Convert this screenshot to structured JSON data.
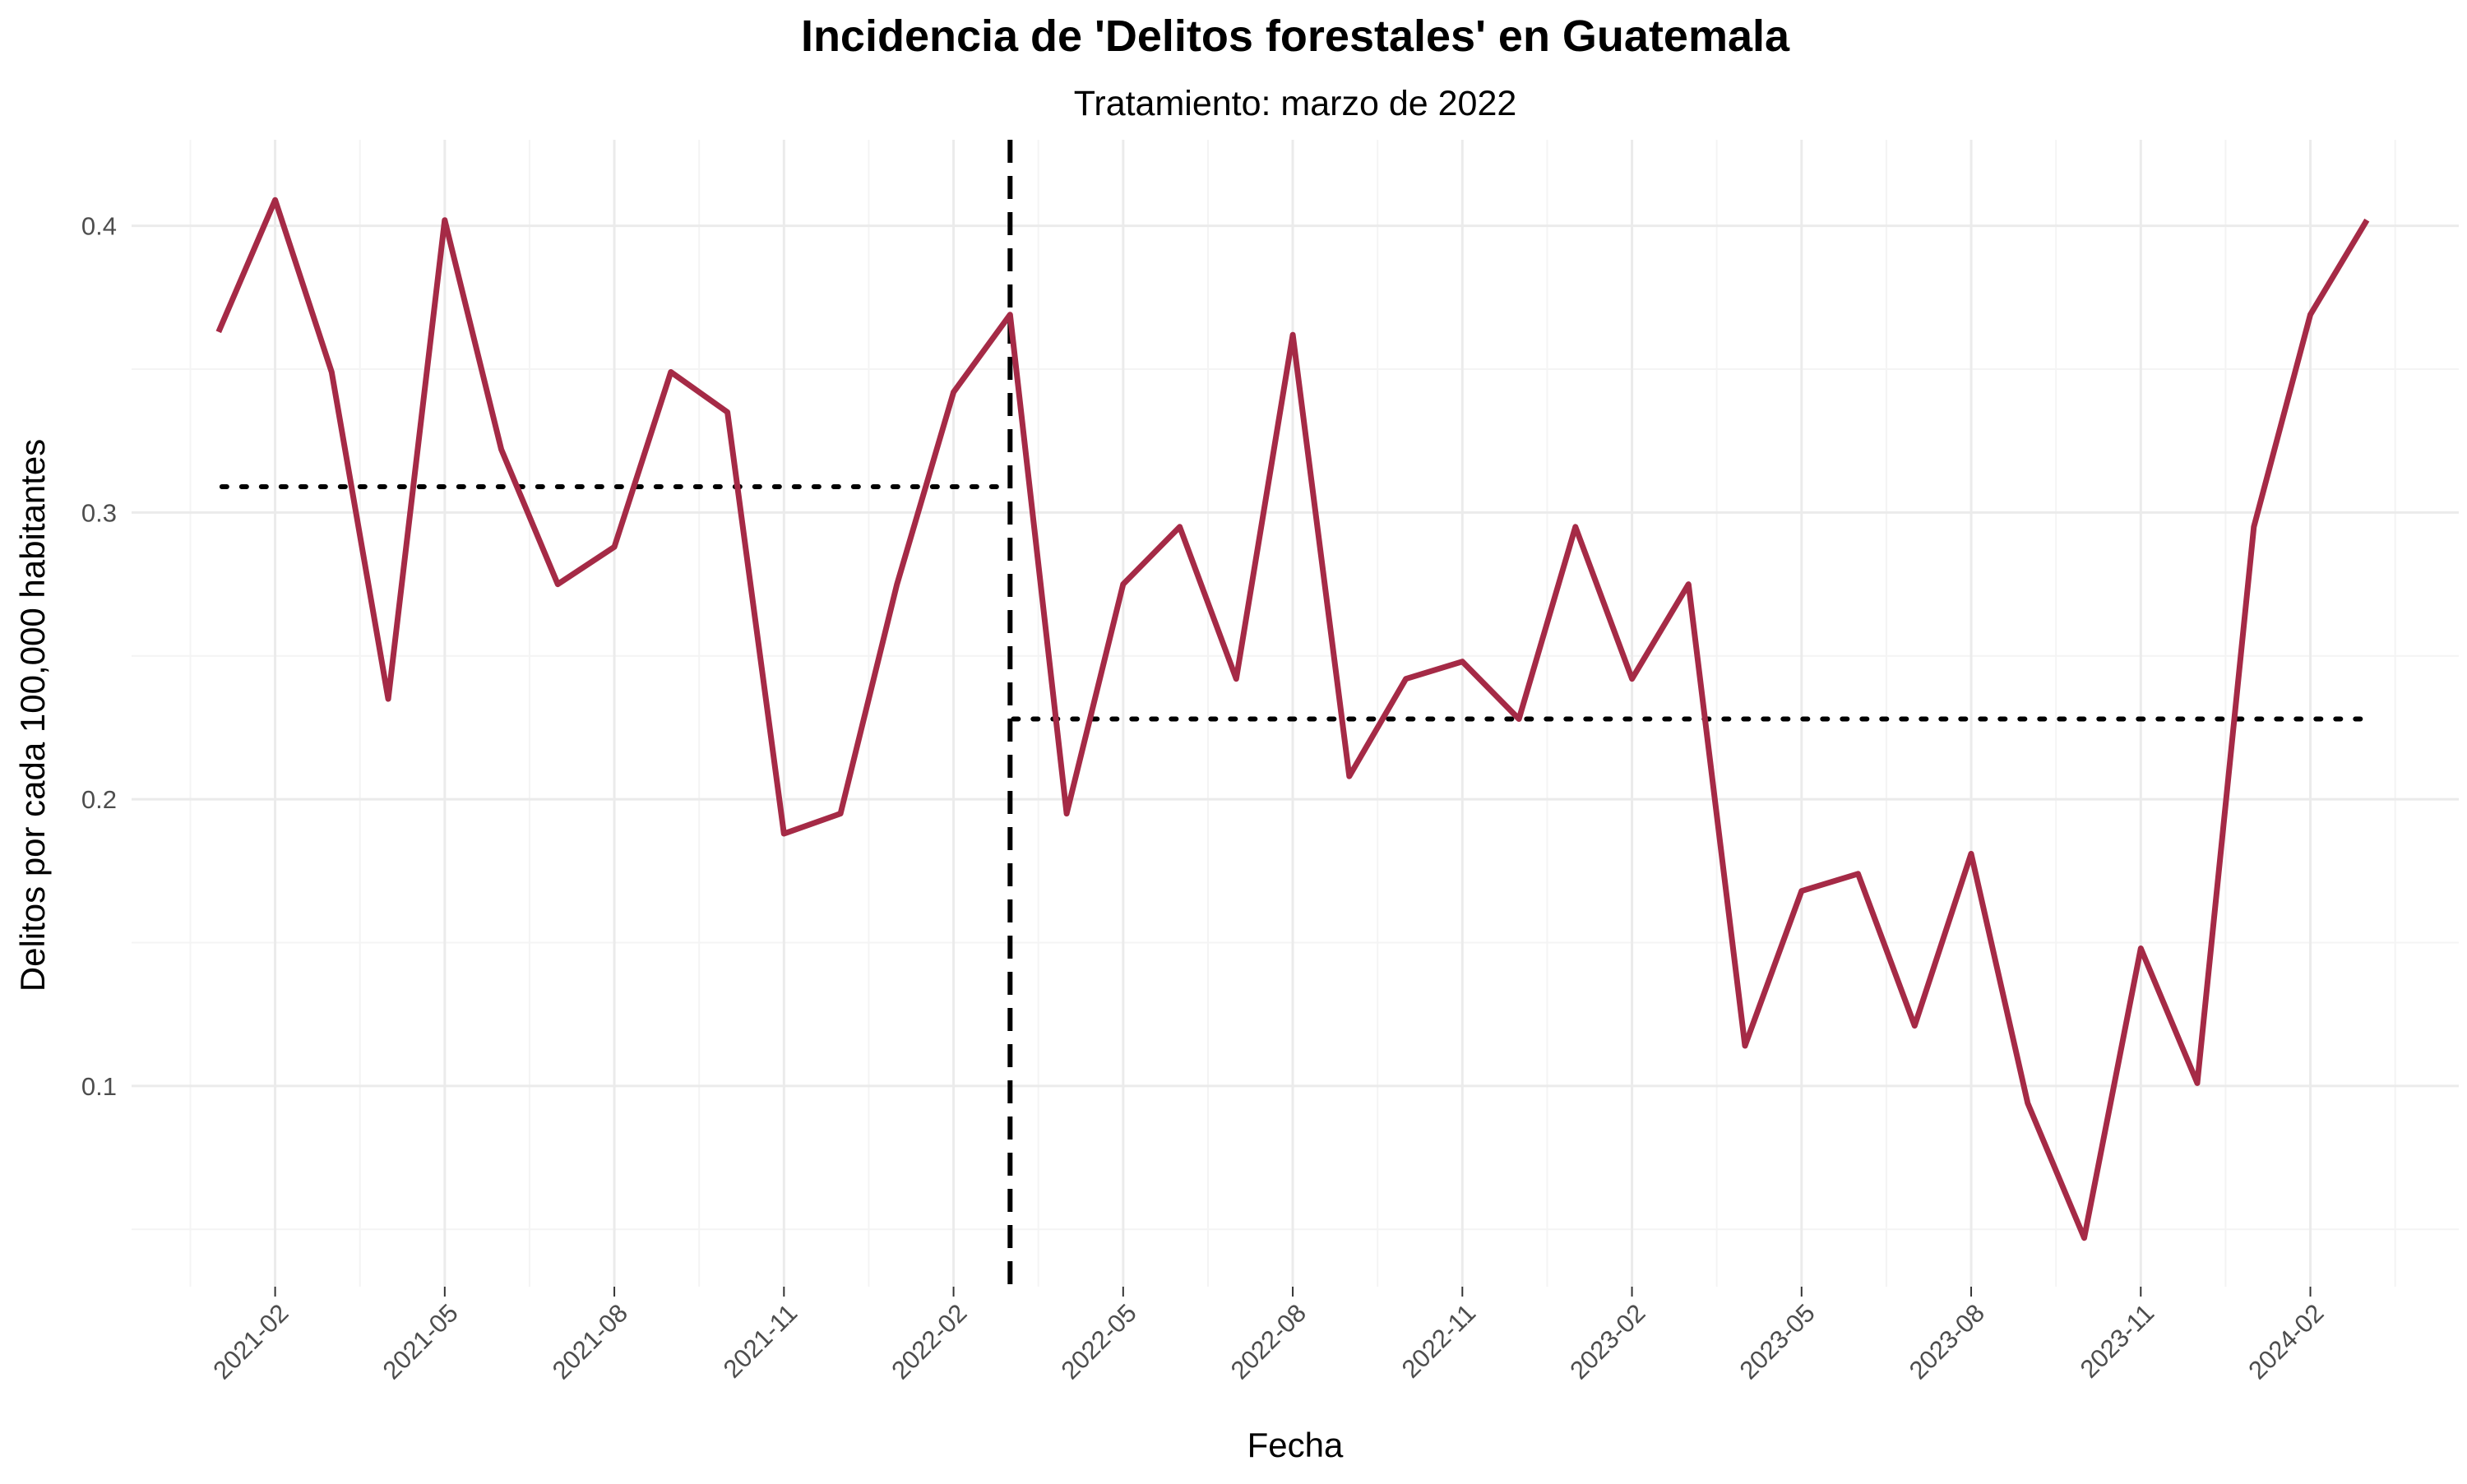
{
  "chart_data": {
    "type": "line",
    "title": "Incidencia de 'Delitos forestales' en Guatemala",
    "subtitle": "Tratamiento: marzo de 2022",
    "xlabel": "Fecha",
    "ylabel": "Delitos por cada 100,000 habitantes",
    "x_ticks": [
      "2021-02",
      "2021-05",
      "2021-08",
      "2021-11",
      "2022-02",
      "2022-05",
      "2022-08",
      "2022-11",
      "2023-02",
      "2023-05",
      "2023-08",
      "2023-11",
      "2024-02"
    ],
    "y_ticks": [
      0.1,
      0.2,
      0.3,
      0.4
    ],
    "ylim": [
      0.03,
      0.43
    ],
    "xlim": [
      "2020-11-15",
      "2024-04-20"
    ],
    "grid": true,
    "series": [
      {
        "color": "#a52a46",
        "x": [
          "2021-01",
          "2021-02",
          "2021-03",
          "2021-04",
          "2021-05",
          "2021-06",
          "2021-07",
          "2021-08",
          "2021-09",
          "2021-10",
          "2021-11",
          "2021-12",
          "2022-01",
          "2022-02",
          "2022-03",
          "2022-04",
          "2022-05",
          "2022-06",
          "2022-07",
          "2022-08",
          "2022-09",
          "2022-10",
          "2022-11",
          "2022-12",
          "2023-01",
          "2023-02",
          "2023-03",
          "2023-04",
          "2023-05",
          "2023-06",
          "2023-07",
          "2023-08",
          "2023-09",
          "2023-10",
          "2023-11",
          "2023-12",
          "2024-01",
          "2024-02",
          "2024-03"
        ],
        "values": [
          0.363,
          0.409,
          0.349,
          0.235,
          0.402,
          0.322,
          0.275,
          0.288,
          0.349,
          0.335,
          0.188,
          0.195,
          0.275,
          0.342,
          0.369,
          0.195,
          0.275,
          0.295,
          0.242,
          0.362,
          0.208,
          0.242,
          0.248,
          0.228,
          0.295,
          0.242,
          0.275,
          0.114,
          0.168,
          0.174,
          0.121,
          0.181,
          0.094,
          0.047,
          0.148,
          0.101,
          0.295,
          0.369,
          0.402
        ]
      }
    ],
    "reference_lines": [
      {
        "style": "dashed",
        "orientation": "vertical",
        "x": "2022-03"
      },
      {
        "style": "dotted",
        "orientation": "horizontal",
        "y": 0.309,
        "x_from": "2021-01",
        "x_to": "2022-03"
      },
      {
        "style": "dotted",
        "orientation": "horizontal",
        "y": 0.228,
        "x_from": "2022-03",
        "x_to": "2024-03"
      }
    ]
  }
}
